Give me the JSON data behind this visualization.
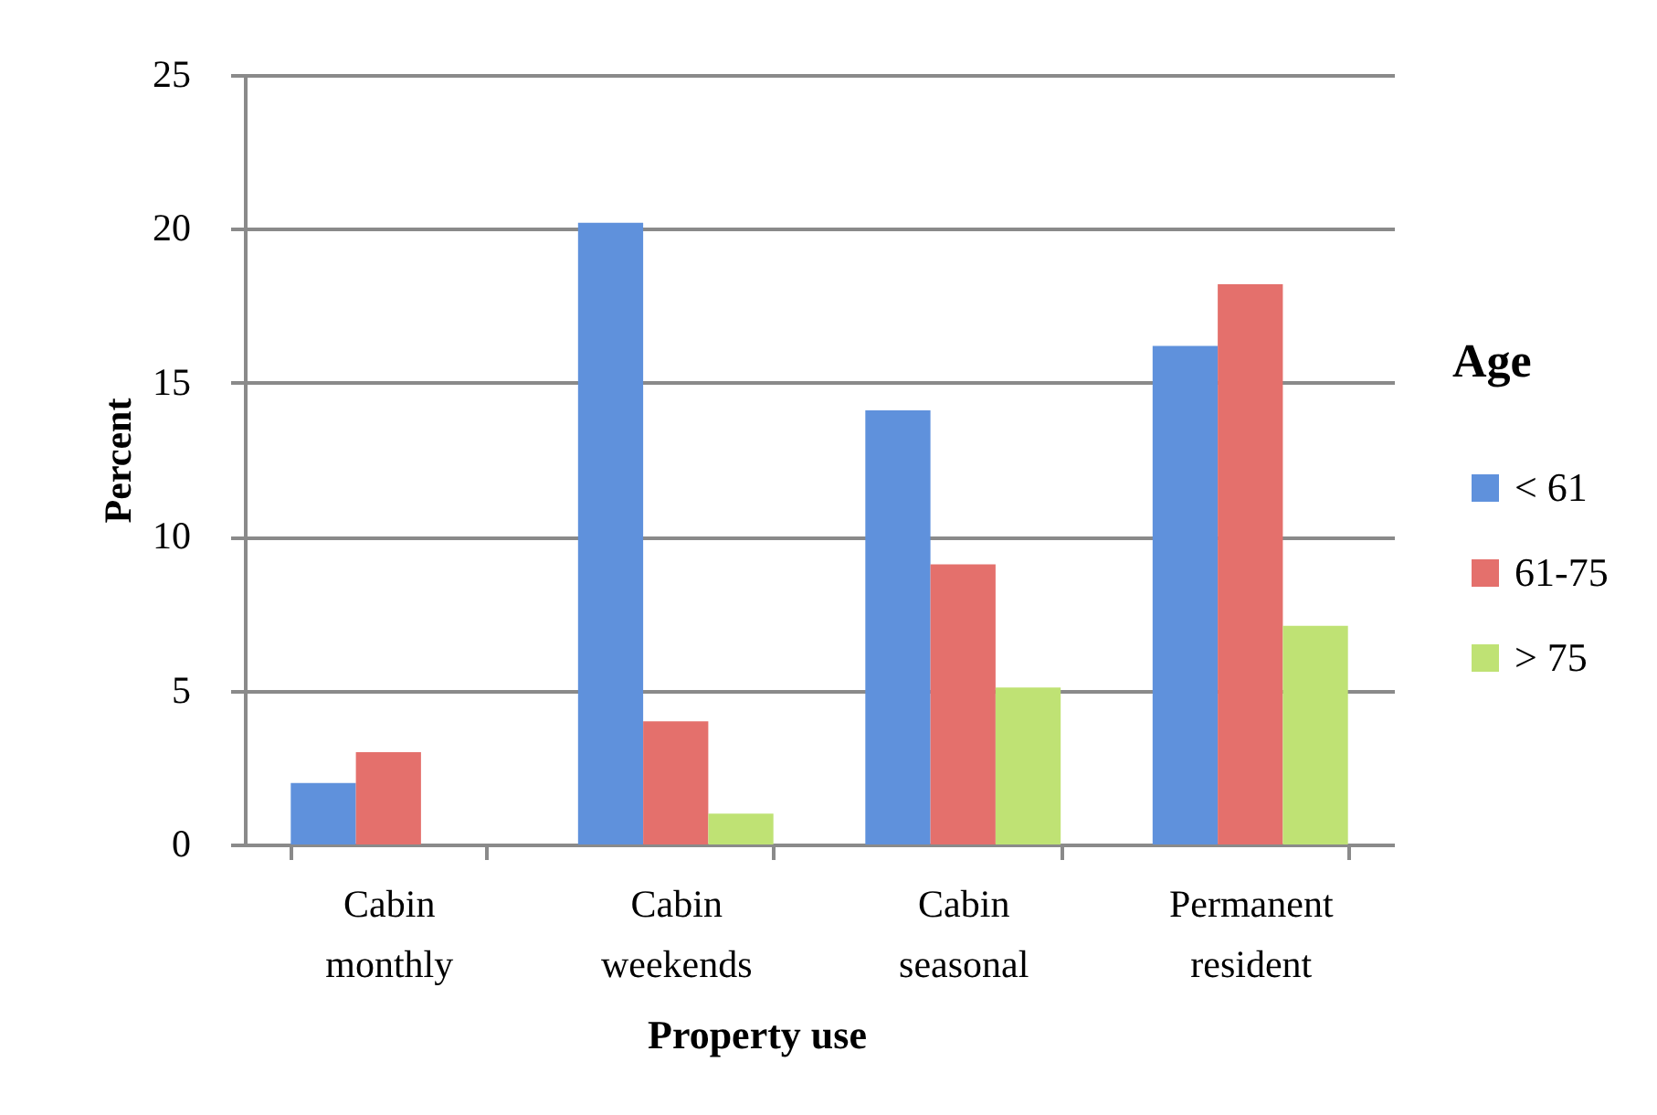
{
  "chart_data": {
    "type": "bar",
    "xlabel": "Property use",
    "ylabel": "Percent",
    "legend_title": "Age",
    "categories": [
      "Cabin monthly",
      "Cabin weekends",
      "Cabin seasonal",
      "Permanent resident"
    ],
    "series": [
      {
        "name": "< 61",
        "color": "#5f91dc",
        "values": [
          2,
          20.2,
          14.1,
          16.2
        ]
      },
      {
        "name": "61-75",
        "color": "#e4706c",
        "values": [
          3,
          4,
          9.1,
          18.2
        ]
      },
      {
        "name": "> 75",
        "color": "#bfe274",
        "values": [
          null,
          1,
          5.1,
          7.1
        ]
      }
    ],
    "ylim": [
      0,
      25
    ],
    "yticks": [
      0,
      5,
      10,
      15,
      20,
      25
    ],
    "grid": "y",
    "legend": "right"
  }
}
